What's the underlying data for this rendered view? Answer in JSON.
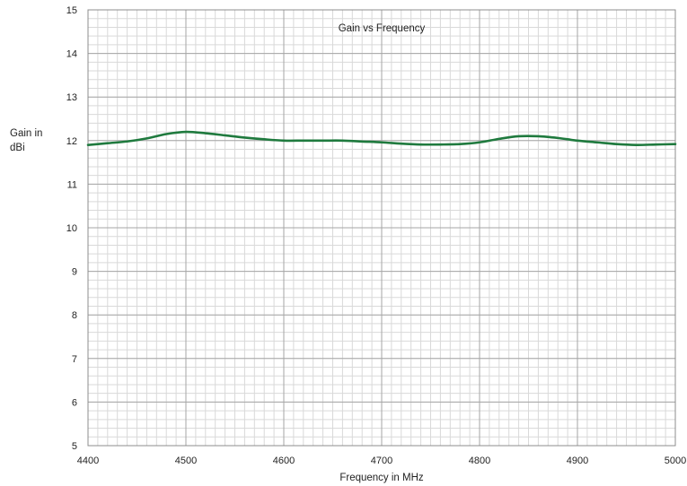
{
  "chart_data": {
    "type": "line",
    "title": "Gain vs Frequency",
    "xlabel": "Frequency in MHz",
    "ylabel_lines": [
      "Gain in",
      "dBi"
    ],
    "xlim": [
      4400,
      5000
    ],
    "ylim": [
      5,
      15
    ],
    "x_ticks": [
      4400,
      4500,
      4600,
      4700,
      4800,
      4900,
      5000
    ],
    "y_ticks": [
      5,
      6,
      7,
      8,
      9,
      10,
      11,
      12,
      13,
      14,
      15
    ],
    "x_minor_step": 10,
    "y_minor_step": 0.2,
    "grid": true,
    "legend": "none",
    "series": [
      {
        "color": "#1f7a3e",
        "x": [
          4400,
          4420,
          4440,
          4460,
          4480,
          4500,
          4520,
          4540,
          4560,
          4580,
          4600,
          4620,
          4640,
          4660,
          4680,
          4700,
          4720,
          4740,
          4760,
          4780,
          4800,
          4820,
          4840,
          4860,
          4880,
          4900,
          4920,
          4940,
          4960,
          4980,
          5000
        ],
        "y": [
          11.9,
          11.94,
          11.98,
          12.05,
          12.15,
          12.2,
          12.17,
          12.12,
          12.07,
          12.03,
          12.0,
          12.0,
          12.0,
          12.0,
          11.98,
          11.96,
          11.93,
          11.91,
          11.91,
          11.92,
          11.96,
          12.04,
          12.1,
          12.1,
          12.06,
          12.0,
          11.96,
          11.92,
          11.9,
          11.91,
          11.92
        ]
      }
    ]
  }
}
